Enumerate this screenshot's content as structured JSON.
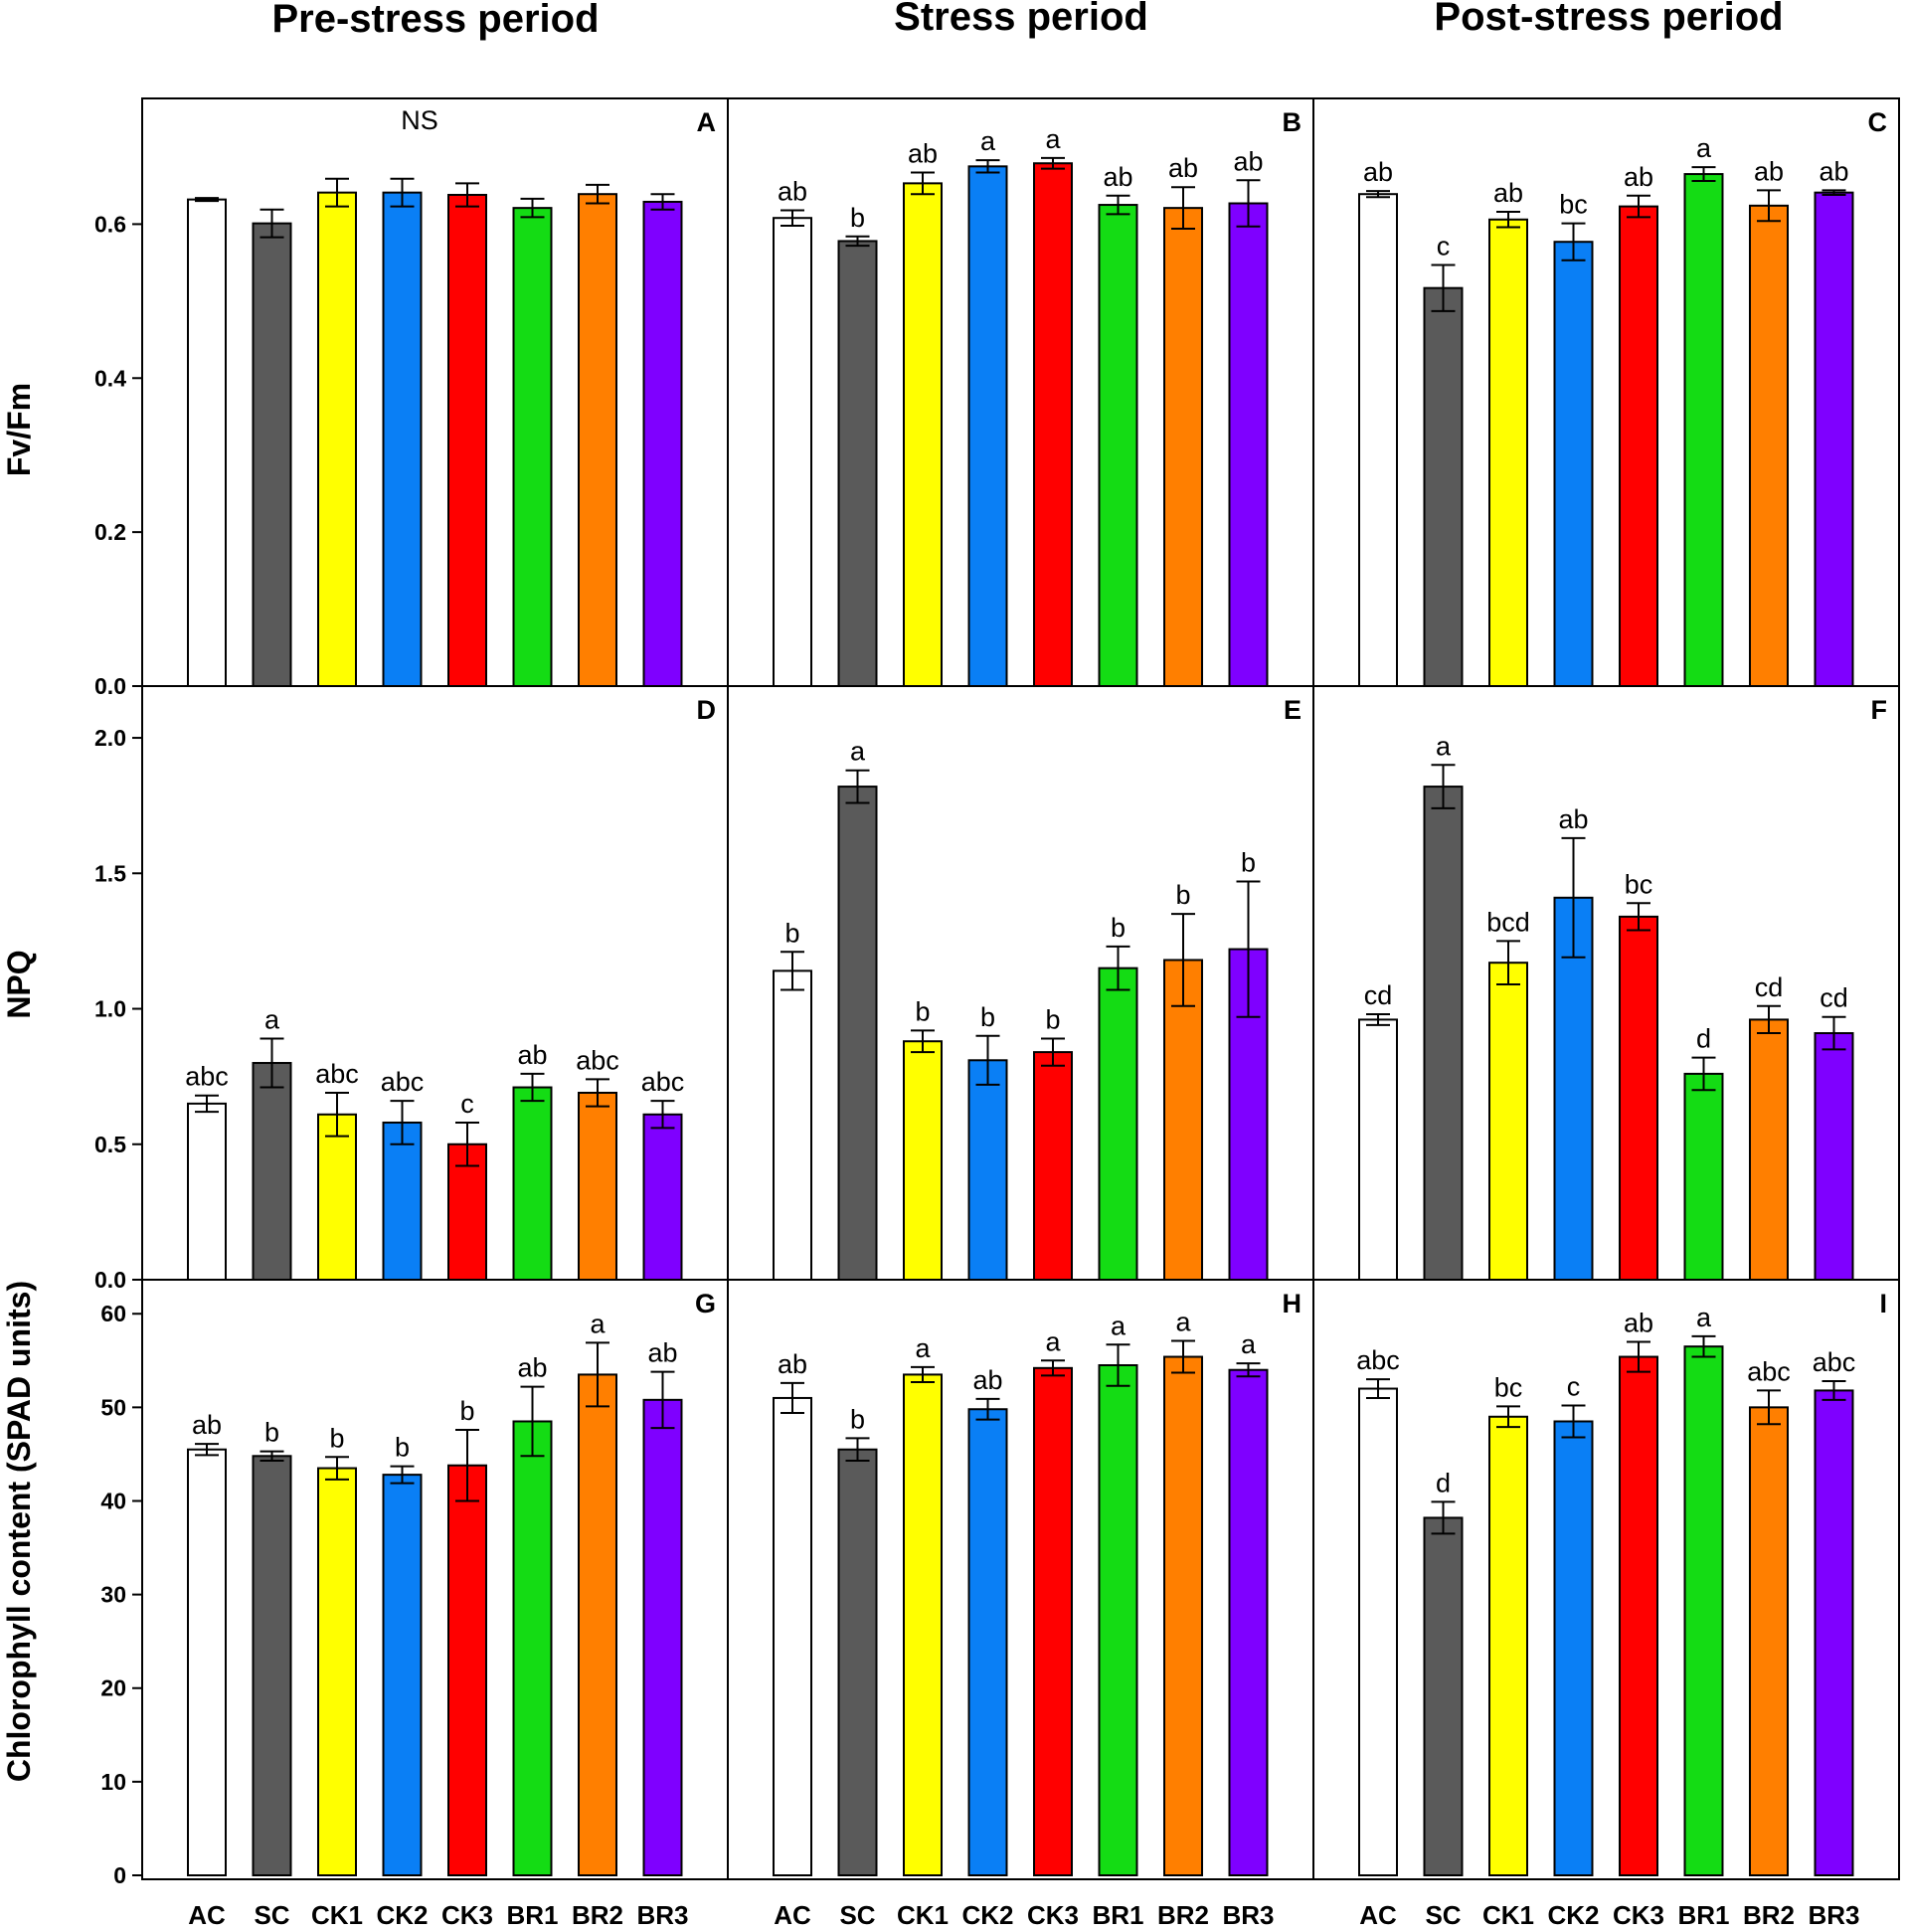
{
  "chart_data": {
    "type": "bar",
    "periods": [
      "Pre-stress period",
      "Stress period",
      "Post-stress period"
    ],
    "categories": [
      "AC",
      "SC",
      "CK1",
      "CK2",
      "CK3",
      "BR1",
      "BR2",
      "BR3"
    ],
    "bar_colors": [
      "#ffffff",
      "#5a5a5a",
      "#ffff00",
      "#0a7ff5",
      "#ff0000",
      "#14dc14",
      "#ff7f00",
      "#7f00ff"
    ],
    "rows": [
      {
        "ylabel": "Fv/Fm",
        "ylim": [
          0,
          0.74
        ],
        "ticks": [
          0.0,
          0.2,
          0.4,
          0.6
        ],
        "tick_labels": [
          "0.0",
          "0.2",
          "0.4",
          "0.6"
        ],
        "panels": [
          {
            "letter": "A",
            "note": "NS",
            "values": [
              0.632,
              0.601,
              0.641,
              0.641,
              0.638,
              0.621,
              0.639,
              0.629
            ],
            "errors": [
              0.002,
              0.018,
              0.018,
              0.018,
              0.015,
              0.012,
              0.012,
              0.01
            ],
            "labels": [
              "",
              "",
              "",
              "",
              "",
              "",
              "",
              ""
            ]
          },
          {
            "letter": "B",
            "note": "",
            "values": [
              0.608,
              0.578,
              0.653,
              0.675,
              0.679,
              0.625,
              0.621,
              0.627
            ],
            "errors": [
              0.01,
              0.006,
              0.014,
              0.008,
              0.007,
              0.012,
              0.027,
              0.03
            ],
            "labels": [
              "ab",
              "b",
              "ab",
              "a",
              "a",
              "ab",
              "ab",
              "ab"
            ]
          },
          {
            "letter": "C",
            "note": "",
            "values": [
              0.639,
              0.517,
              0.606,
              0.577,
              0.623,
              0.665,
              0.624,
              0.641
            ],
            "errors": [
              0.004,
              0.03,
              0.01,
              0.024,
              0.014,
              0.009,
              0.02,
              0.003
            ],
            "labels": [
              "ab",
              "c",
              "ab",
              "bc",
              "ab",
              "a",
              "ab",
              "ab"
            ]
          }
        ]
      },
      {
        "ylabel": "NPQ",
        "ylim": [
          0,
          2.18
        ],
        "ticks": [
          0.0,
          0.5,
          1.0,
          1.5,
          2.0
        ],
        "tick_labels": [
          "0.0",
          "0.5",
          "1.0",
          "1.5",
          "2.0"
        ],
        "panels": [
          {
            "letter": "D",
            "note": "",
            "values": [
              0.65,
              0.8,
              0.61,
              0.58,
              0.5,
              0.71,
              0.69,
              0.61
            ],
            "errors": [
              0.03,
              0.09,
              0.08,
              0.08,
              0.08,
              0.05,
              0.05,
              0.05
            ],
            "labels": [
              "abc",
              "a",
              "abc",
              "abc",
              "c",
              "ab",
              "abc",
              "abc"
            ]
          },
          {
            "letter": "E",
            "note": "",
            "values": [
              1.14,
              1.82,
              0.88,
              0.81,
              0.84,
              1.15,
              1.18,
              1.22
            ],
            "errors": [
              0.07,
              0.06,
              0.04,
              0.09,
              0.05,
              0.08,
              0.17,
              0.25
            ],
            "labels": [
              "b",
              "a",
              "b",
              "b",
              "b",
              "b",
              "b",
              "b"
            ]
          },
          {
            "letter": "F",
            "note": "",
            "values": [
              0.96,
              1.82,
              1.17,
              1.41,
              1.34,
              0.76,
              0.96,
              0.91
            ],
            "errors": [
              0.02,
              0.08,
              0.08,
              0.22,
              0.05,
              0.06,
              0.05,
              0.06
            ],
            "labels": [
              "cd",
              "a",
              "bcd",
              "ab",
              "bc",
              "d",
              "cd",
              "cd"
            ]
          }
        ]
      },
      {
        "ylabel": "Chlorophyll content (SPAD units)",
        "ylim": [
          0,
          63
        ],
        "ticks": [
          0,
          10,
          20,
          30,
          40,
          50,
          60
        ],
        "tick_labels": [
          "0",
          "10",
          "20",
          "30",
          "40",
          "50",
          "60"
        ],
        "panels": [
          {
            "letter": "G",
            "note": "",
            "values": [
              45.5,
              44.8,
              43.5,
              42.8,
              43.8,
              48.5,
              53.5,
              50.8
            ],
            "errors": [
              0.6,
              0.5,
              1.2,
              0.9,
              3.8,
              3.7,
              3.4,
              3.0
            ],
            "labels": [
              "ab",
              "b",
              "b",
              "b",
              "b",
              "ab",
              "a",
              "ab"
            ]
          },
          {
            "letter": "H",
            "note": "",
            "values": [
              51.0,
              45.5,
              53.5,
              49.8,
              54.2,
              54.5,
              55.4,
              54.0
            ],
            "errors": [
              1.6,
              1.2,
              0.8,
              1.1,
              0.8,
              2.2,
              1.7,
              0.7
            ],
            "labels": [
              "ab",
              "b",
              "a",
              "ab",
              "a",
              "a",
              "a",
              "a"
            ]
          },
          {
            "letter": "I",
            "note": "",
            "values": [
              52.0,
              38.2,
              49.0,
              48.5,
              55.4,
              56.5,
              50.0,
              51.8
            ],
            "errors": [
              1.0,
              1.7,
              1.1,
              1.7,
              1.6,
              1.1,
              1.8,
              1.0
            ],
            "labels": [
              "abc",
              "d",
              "bc",
              "c",
              "ab",
              "a",
              "abc",
              "abc"
            ]
          }
        ]
      }
    ]
  }
}
